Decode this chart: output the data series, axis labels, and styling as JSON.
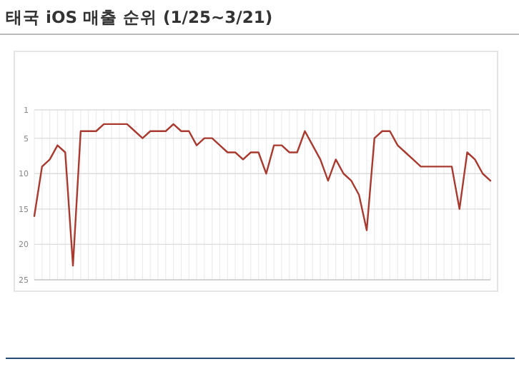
{
  "chart_data": {
    "type": "line",
    "title": "태국 iOS 매출 순위 (1/25~3/21)",
    "categories": [
      null,
      null,
      null,
      null,
      null,
      null,
      null,
      null,
      null,
      null,
      null,
      null,
      null,
      null,
      null,
      null,
      null,
      null,
      null,
      null,
      null,
      null,
      null,
      null,
      null,
      null,
      null,
      null,
      null,
      null,
      null,
      null,
      null,
      null,
      null,
      null,
      null,
      null,
      null,
      null,
      null,
      null,
      null,
      null,
      null,
      null,
      null,
      null,
      null,
      null,
      null,
      null,
      null,
      null,
      null,
      null,
      null,
      null,
      null,
      null
    ],
    "series": [
      {
        "color": "#a83a30",
        "values": [
          16,
          9,
          8,
          6,
          7,
          23,
          4,
          4,
          4,
          3,
          3,
          3,
          3,
          4,
          5,
          4,
          4,
          4,
          3,
          4,
          4,
          6,
          5,
          5,
          6,
          7,
          7,
          8,
          7,
          7,
          10,
          6,
          6,
          7,
          7,
          4,
          6,
          8,
          11,
          8,
          10,
          11,
          13,
          18,
          5,
          4,
          4,
          6,
          7,
          8,
          9,
          9,
          9,
          9,
          9,
          15,
          7,
          8,
          10,
          11
        ]
      }
    ],
    "ylim": [
      25,
      1
    ],
    "yticks": [
      1,
      5,
      10,
      15,
      20,
      25
    ],
    "grid": true
  }
}
